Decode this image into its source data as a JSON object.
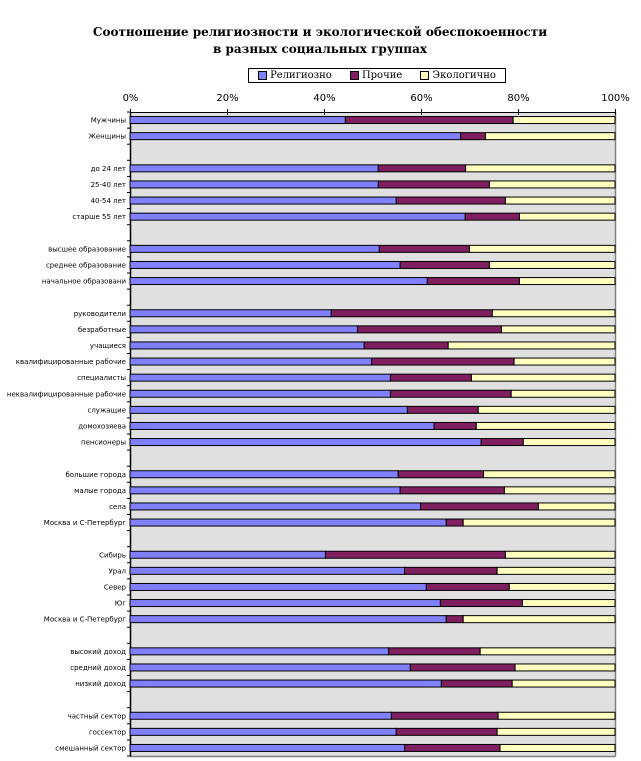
{
  "chart_data": {
    "type": "bar",
    "orientation": "horizontal",
    "stacked": "percent",
    "title": "Соотношение религиозности и экологической обеспокоенности в разных социальных группах",
    "xlabel": "",
    "ylabel": "",
    "xlim": [
      0,
      100
    ],
    "x_ticks": [
      "0%",
      "20%",
      "40%",
      "60%",
      "80%",
      "100%"
    ],
    "grid": false,
    "legend_position": "top",
    "colors": {
      "Религиозно": "#8080ff",
      "Прочие": "#7f1f5f",
      "Экологично": "#ffffc0",
      "plot_background": "#e0e0e0"
    },
    "categories": [
      "Мужчины",
      "Женщины",
      "",
      "до 24 лет",
      "25-40 лет",
      "40-54 лет",
      "старше 55 лет",
      "",
      "высшее образование",
      "среднее образование",
      "начальное образовани",
      "",
      "руководители",
      "безработные",
      "учащиеся",
      "квалифицированные рабочие",
      "специалисты",
      "неквалифицированные рабочие",
      "служащие",
      "домохозяева",
      "пенсионеры",
      "",
      "большие города",
      "малые города",
      "села",
      "Москва и С-Петербург",
      "",
      "Сибирь",
      "Урал",
      "Север",
      "Юг",
      "Москва и С-Петербург",
      "",
      "высокий доход",
      "средний доход",
      "низкий доход",
      "",
      "частный сектор",
      "госсектор",
      "смешанный сектор"
    ],
    "series": [
      {
        "name": "Религиозно",
        "values": [
          44.4,
          68.2,
          null,
          51.2,
          51.2,
          54.9,
          69.1,
          null,
          51.4,
          55.7,
          61.3,
          null,
          41.5,
          46.9,
          48.3,
          49.8,
          53.7,
          53.7,
          57.2,
          62.7,
          72.4,
          null,
          55.3,
          55.7,
          59.9,
          65.2,
          null,
          40.3,
          56.6,
          61.1,
          64.0,
          65.2,
          null,
          53.3,
          57.8,
          64.2,
          null,
          53.9,
          54.9,
          56.6
        ]
      },
      {
        "name": "Прочие",
        "values": [
          34.6,
          5.1,
          null,
          18.0,
          22.9,
          22.5,
          11.2,
          null,
          18.6,
          18.4,
          19.0,
          null,
          33.2,
          29.7,
          17.3,
          29.4,
          16.7,
          24.9,
          14.6,
          8.7,
          8.7,
          null,
          17.6,
          21.5,
          24.3,
          3.5,
          null,
          37.1,
          19.1,
          17.1,
          16.9,
          3.5,
          null,
          18.9,
          21.6,
          14.6,
          null,
          22.0,
          20.8,
          19.7
        ]
      },
      {
        "name": "Экологично",
        "values": [
          21.0,
          26.7,
          null,
          30.8,
          25.9,
          22.6,
          19.7,
          null,
          30.0,
          25.9,
          19.7,
          null,
          25.3,
          23.4,
          34.4,
          20.8,
          29.6,
          21.4,
          28.2,
          28.6,
          18.9,
          null,
          27.1,
          22.8,
          15.8,
          31.3,
          null,
          22.6,
          24.3,
          21.8,
          19.1,
          31.3,
          null,
          27.8,
          20.6,
          21.2,
          null,
          24.1,
          24.3,
          23.7
        ]
      }
    ]
  }
}
